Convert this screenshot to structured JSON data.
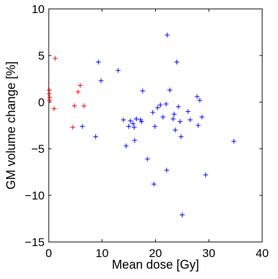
{
  "chart_data": {
    "type": "scatter",
    "xlabel": "Mean dose [Gy]",
    "ylabel": "GM volume change [%]",
    "xlim": [
      0,
      40
    ],
    "ylim": [
      -15,
      10
    ],
    "xticks": [
      0,
      10,
      20,
      30,
      40
    ],
    "yticks": [
      -15,
      -10,
      -5,
      0,
      5,
      10
    ],
    "xtick_labels": [
      "0",
      "10",
      "20",
      "30",
      "40"
    ],
    "ytick_labels": [
      "−15",
      "−10",
      "−5",
      "0",
      "5",
      "10"
    ],
    "grid": false,
    "marker": "+",
    "series": [
      {
        "color": "#ff0000",
        "points": [
          [
            0.1,
            1.3
          ],
          [
            0.1,
            0.9
          ],
          [
            0.2,
            0.5
          ],
          [
            0.2,
            0.2
          ],
          [
            1.2,
            4.7
          ],
          [
            1.0,
            -0.7
          ],
          [
            4.5,
            -2.7
          ],
          [
            4.8,
            -0.4
          ],
          [
            5.5,
            1.1
          ],
          [
            5.9,
            1.8
          ],
          [
            6.6,
            -0.4
          ]
        ]
      },
      {
        "color": "#0000ff",
        "points": [
          [
            6.3,
            -2.6
          ],
          [
            8.8,
            -3.7
          ],
          [
            9.3,
            4.3
          ],
          [
            9.8,
            2.3
          ],
          [
            13.0,
            3.4
          ],
          [
            14.0,
            -1.9
          ],
          [
            14.5,
            -4.7
          ],
          [
            15.0,
            -2.6
          ],
          [
            15.3,
            -2.0
          ],
          [
            15.8,
            -2.3
          ],
          [
            16.0,
            -2.7
          ],
          [
            16.1,
            -4.1
          ],
          [
            16.4,
            -1.8
          ],
          [
            17.2,
            -1.9
          ],
          [
            17.4,
            -2.1
          ],
          [
            17.6,
            1.2
          ],
          [
            18.5,
            -6.1
          ],
          [
            19.5,
            -1.1
          ],
          [
            19.7,
            -8.8
          ],
          [
            19.9,
            -2.6
          ],
          [
            20.4,
            -0.6
          ],
          [
            20.9,
            -0.3
          ],
          [
            21.4,
            -1.6
          ],
          [
            22.0,
            -0.2
          ],
          [
            22.2,
            7.2
          ],
          [
            22.1,
            -7.3
          ],
          [
            22.7,
            1.3
          ],
          [
            23.3,
            -1.8
          ],
          [
            23.5,
            -1.3
          ],
          [
            23.7,
            -3.0
          ],
          [
            24.0,
            4.3
          ],
          [
            24.3,
            -0.5
          ],
          [
            24.6,
            -2.1
          ],
          [
            24.8,
            -3.7
          ],
          [
            25.0,
            -12.1
          ],
          [
            26.1,
            -1.0
          ],
          [
            26.5,
            -1.9
          ],
          [
            27.8,
            0.6
          ],
          [
            28.0,
            -2.5
          ],
          [
            28.3,
            0.2
          ],
          [
            28.7,
            -1.6
          ],
          [
            29.4,
            -7.8
          ],
          [
            34.7,
            -4.2
          ]
        ]
      }
    ]
  }
}
